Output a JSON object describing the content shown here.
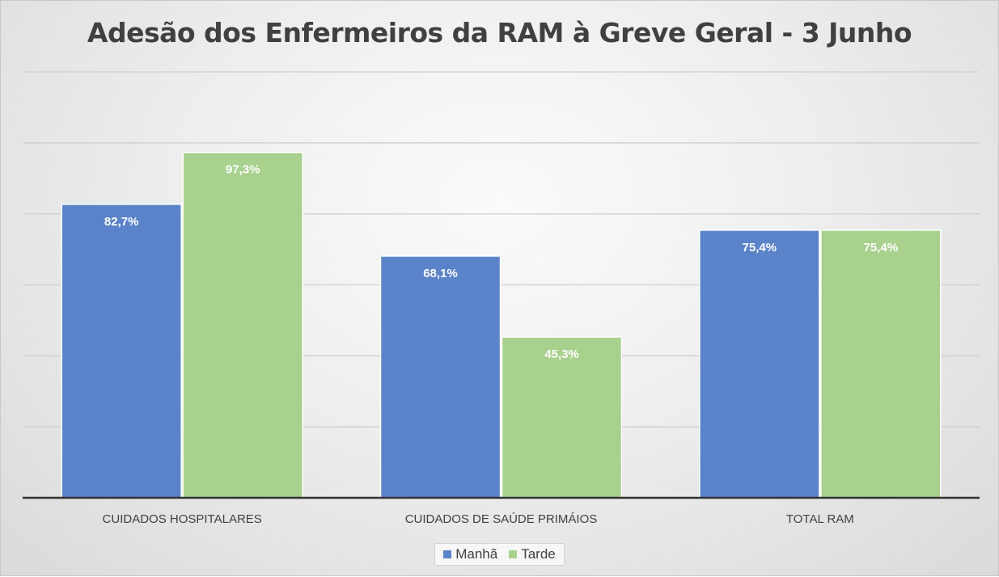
{
  "chart_data": {
    "type": "bar",
    "title": "Adesão dos Enfermeiros da RAM à Greve Geral - 3 Junho",
    "categories": [
      "CUIDADOS HOSPITALARES",
      "CUIDADOS DE SAÚDE PRIMÁIOS",
      "TOTAL RAM"
    ],
    "series": [
      {
        "name": "Manhã",
        "color": "#5b83c9",
        "values": [
          82.7,
          68.1,
          75.4
        ],
        "labels": [
          "82,7%",
          "68,1%",
          "75,4%"
        ]
      },
      {
        "name": "Tarde",
        "color": "#a9d18e",
        "values": [
          97.3,
          45.3,
          75.4
        ],
        "labels": [
          "97,3%",
          "45,3%",
          "75,4%"
        ]
      }
    ],
    "ylim": [
      0,
      120
    ],
    "grid": true,
    "legend_position": "bottom"
  }
}
